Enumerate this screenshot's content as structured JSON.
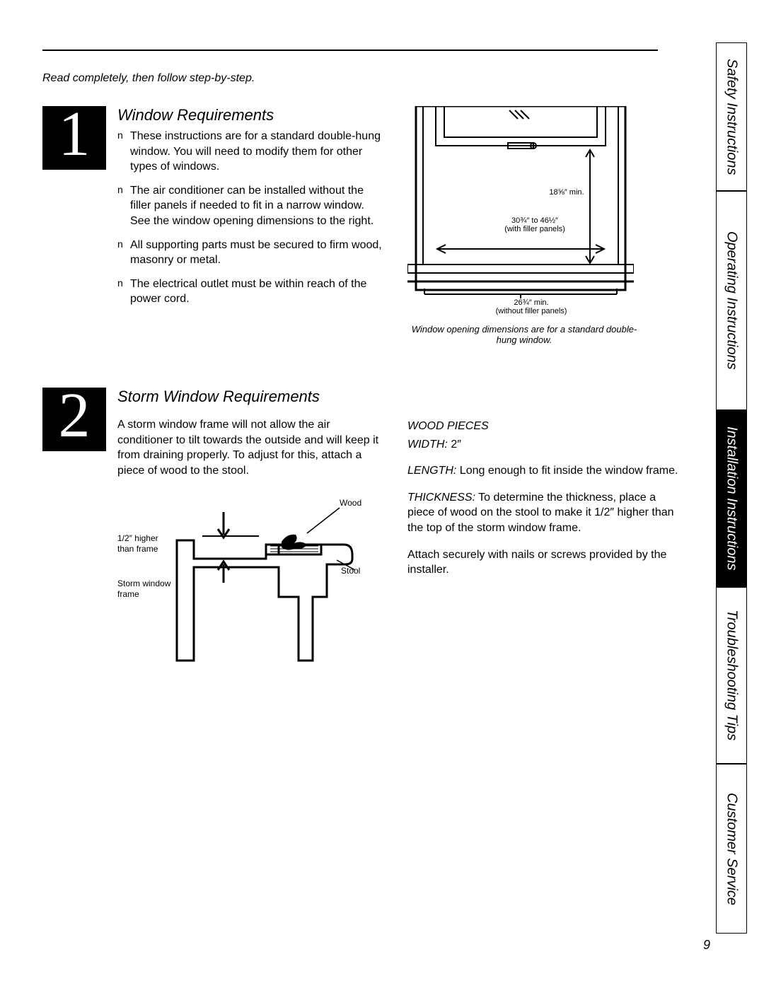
{
  "intro": "Read completely, then follow step-by-step.",
  "section1": {
    "title": "Window Requirements",
    "bullets": [
      "These instructions are for a standard double-hung window. You will need to modify them for other types of windows.",
      "The air conditioner can be installed without the filler panels if needed to fit in a narrow window. See the window opening dimensions to the right.",
      "All supporting parts must be secured to firm wood, masonry or metal.",
      "The electrical outlet must be within reach of the power cord."
    ],
    "diagram": {
      "height_label": "18⅝″ min.",
      "width_with": "30¾″ to 46½″",
      "width_with_sub": "(with filler panels)",
      "width_without": "26¾″ min.",
      "width_without_sub": "(without filler panels)",
      "caption": "Window opening dimensions are for a standard double-hung window."
    }
  },
  "section2": {
    "title": "Storm Window Requirements",
    "para": "A storm window frame will not allow the air conditioner to tilt towards the outside and will keep it from draining properly. To adjust for this, attach a piece of wood to the stool.",
    "diagram_labels": {
      "higher": "1/2″ higher\nthan frame",
      "wood": "Wood",
      "stool": "Stool",
      "storm": "Storm window\nframe"
    },
    "wood_pieces": {
      "heading": "WOOD PIECES",
      "width_label": "WIDTH:",
      "width_val": "2″",
      "length_label": "LENGTH:",
      "length_val": "Long enough to fit inside the window frame.",
      "thickness_label": "THICKNESS:",
      "thickness_val": "To determine the thickness, place a piece of wood on the stool to make it 1/2″ higher than the top of the storm window frame.",
      "attach": "Attach securely with nails or screws provided by the installer."
    }
  },
  "tabs": {
    "safety": "Safety Instructions",
    "operating": "Operating Instructions",
    "installation": "Installation Instructions",
    "troubleshooting": "Troubleshooting Tips",
    "customer": "Customer Service",
    "heights": [
      210,
      310,
      250,
      250,
      240
    ]
  },
  "page_number": "9",
  "colors": {
    "fg": "#000000",
    "bg": "#ffffff"
  },
  "step_numbers": [
    "1",
    "2"
  ]
}
